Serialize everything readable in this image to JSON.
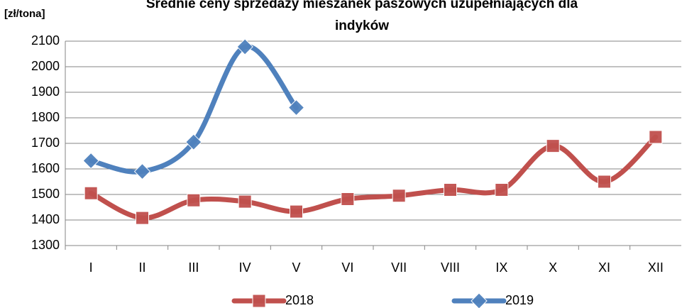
{
  "chart_data": {
    "type": "line",
    "title": "Średnie ceny sprzedaży mieszanek paszowych uzupełniających dla indyków",
    "y_label": "[zł/tona]",
    "categories": [
      "I",
      "II",
      "III",
      "IV",
      "V",
      "VI",
      "VII",
      "VIII",
      "IX",
      "X",
      "XI",
      "XII"
    ],
    "series": [
      {
        "name": "2018",
        "color": "#c0504d",
        "marker": "square",
        "values": [
          1505,
          1408,
          1477,
          1472,
          1433,
          1482,
          1495,
          1518,
          1518,
          1690,
          1550,
          1725
        ]
      },
      {
        "name": "2019",
        "color": "#4f81bd",
        "marker": "diamond",
        "values": [
          1632,
          1590,
          1705,
          2078,
          1840,
          null,
          null,
          null,
          null,
          null,
          null,
          null
        ]
      }
    ],
    "ylim": [
      1300,
      2100
    ],
    "yticks": [
      1300,
      1400,
      1500,
      1600,
      1700,
      1800,
      1900,
      2000,
      2100
    ],
    "grid": true,
    "smooth": true,
    "legend": "bottom"
  }
}
